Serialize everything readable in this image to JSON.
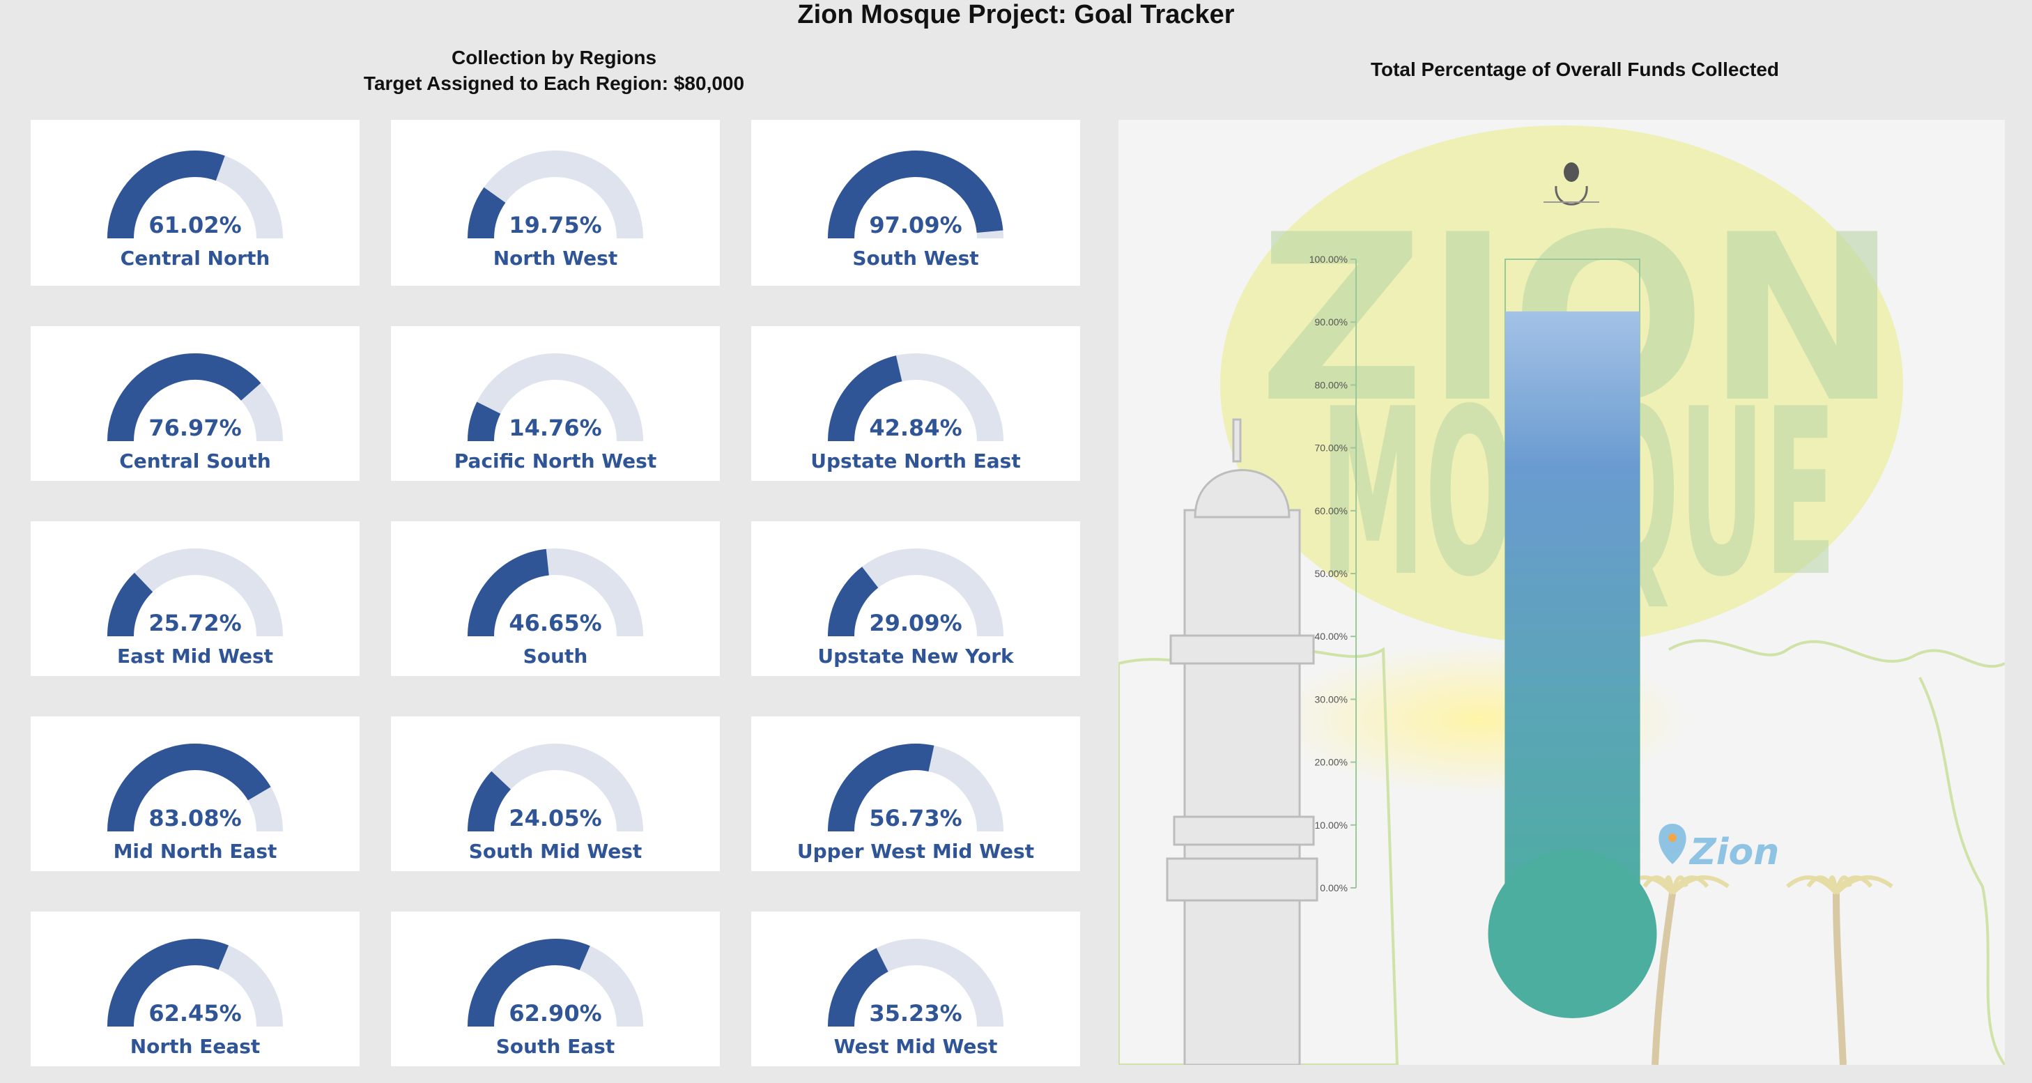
{
  "title": "Zion Mosque Project: Goal Tracker",
  "left_subtitle_line1": "Collection by Regions",
  "left_subtitle_line2": "Target Assigned to Each Region: $80,000",
  "right_subtitle": "Total Percentage of Overall Funds Collected",
  "colors": {
    "gauge_fill": "#2f5597",
    "gauge_track": "#dfe3ee",
    "label": "#2f5597"
  },
  "chart_data": [
    {
      "type": "gauge",
      "title": "Collection by Regions",
      "max": 100,
      "regions": [
        {
          "name": "Central North",
          "value": 61.02,
          "label": "61.02%"
        },
        {
          "name": "North West",
          "value": 19.75,
          "label": "19.75%"
        },
        {
          "name": "South West",
          "value": 97.09,
          "label": "97.09%"
        },
        {
          "name": "Central South",
          "value": 76.97,
          "label": "76.97%"
        },
        {
          "name": "Pacific North West",
          "value": 14.76,
          "label": "14.76%"
        },
        {
          "name": "Upstate North East",
          "value": 42.84,
          "label": "42.84%"
        },
        {
          "name": "East Mid West",
          "value": 25.72,
          "label": "25.72%"
        },
        {
          "name": "South",
          "value": 46.65,
          "label": "46.65%"
        },
        {
          "name": "Upstate New York",
          "value": 29.09,
          "label": "29.09%"
        },
        {
          "name": "Mid North East",
          "value": 83.08,
          "label": "83.08%"
        },
        {
          "name": "South Mid West",
          "value": 24.05,
          "label": "24.05%"
        },
        {
          "name": "Upper West Mid West",
          "value": 56.73,
          "label": "56.73%"
        },
        {
          "name": "North Eeast",
          "value": 62.45,
          "label": "62.45%"
        },
        {
          "name": "South East",
          "value": 62.9,
          "label": "62.90%"
        },
        {
          "name": "West Mid West",
          "value": 35.23,
          "label": "35.23%"
        }
      ]
    },
    {
      "type": "thermometer",
      "title": "Total Percentage of Overall Funds Collected",
      "value": 91.7,
      "ylim": [
        0,
        100
      ],
      "ticks": [
        "0.00%",
        "10.00%",
        "20.00%",
        "30.00%",
        "40.00%",
        "50.00%",
        "60.00%",
        "70.00%",
        "80.00%",
        "90.00%",
        "100.00%"
      ],
      "background_watermark": [
        "ZION",
        "MOSQUE"
      ],
      "logo_text": "Zion",
      "colors": {
        "top": "#a4c2e6",
        "mid": "#6a9bd0",
        "bottom": "#4cae9e"
      }
    }
  ]
}
